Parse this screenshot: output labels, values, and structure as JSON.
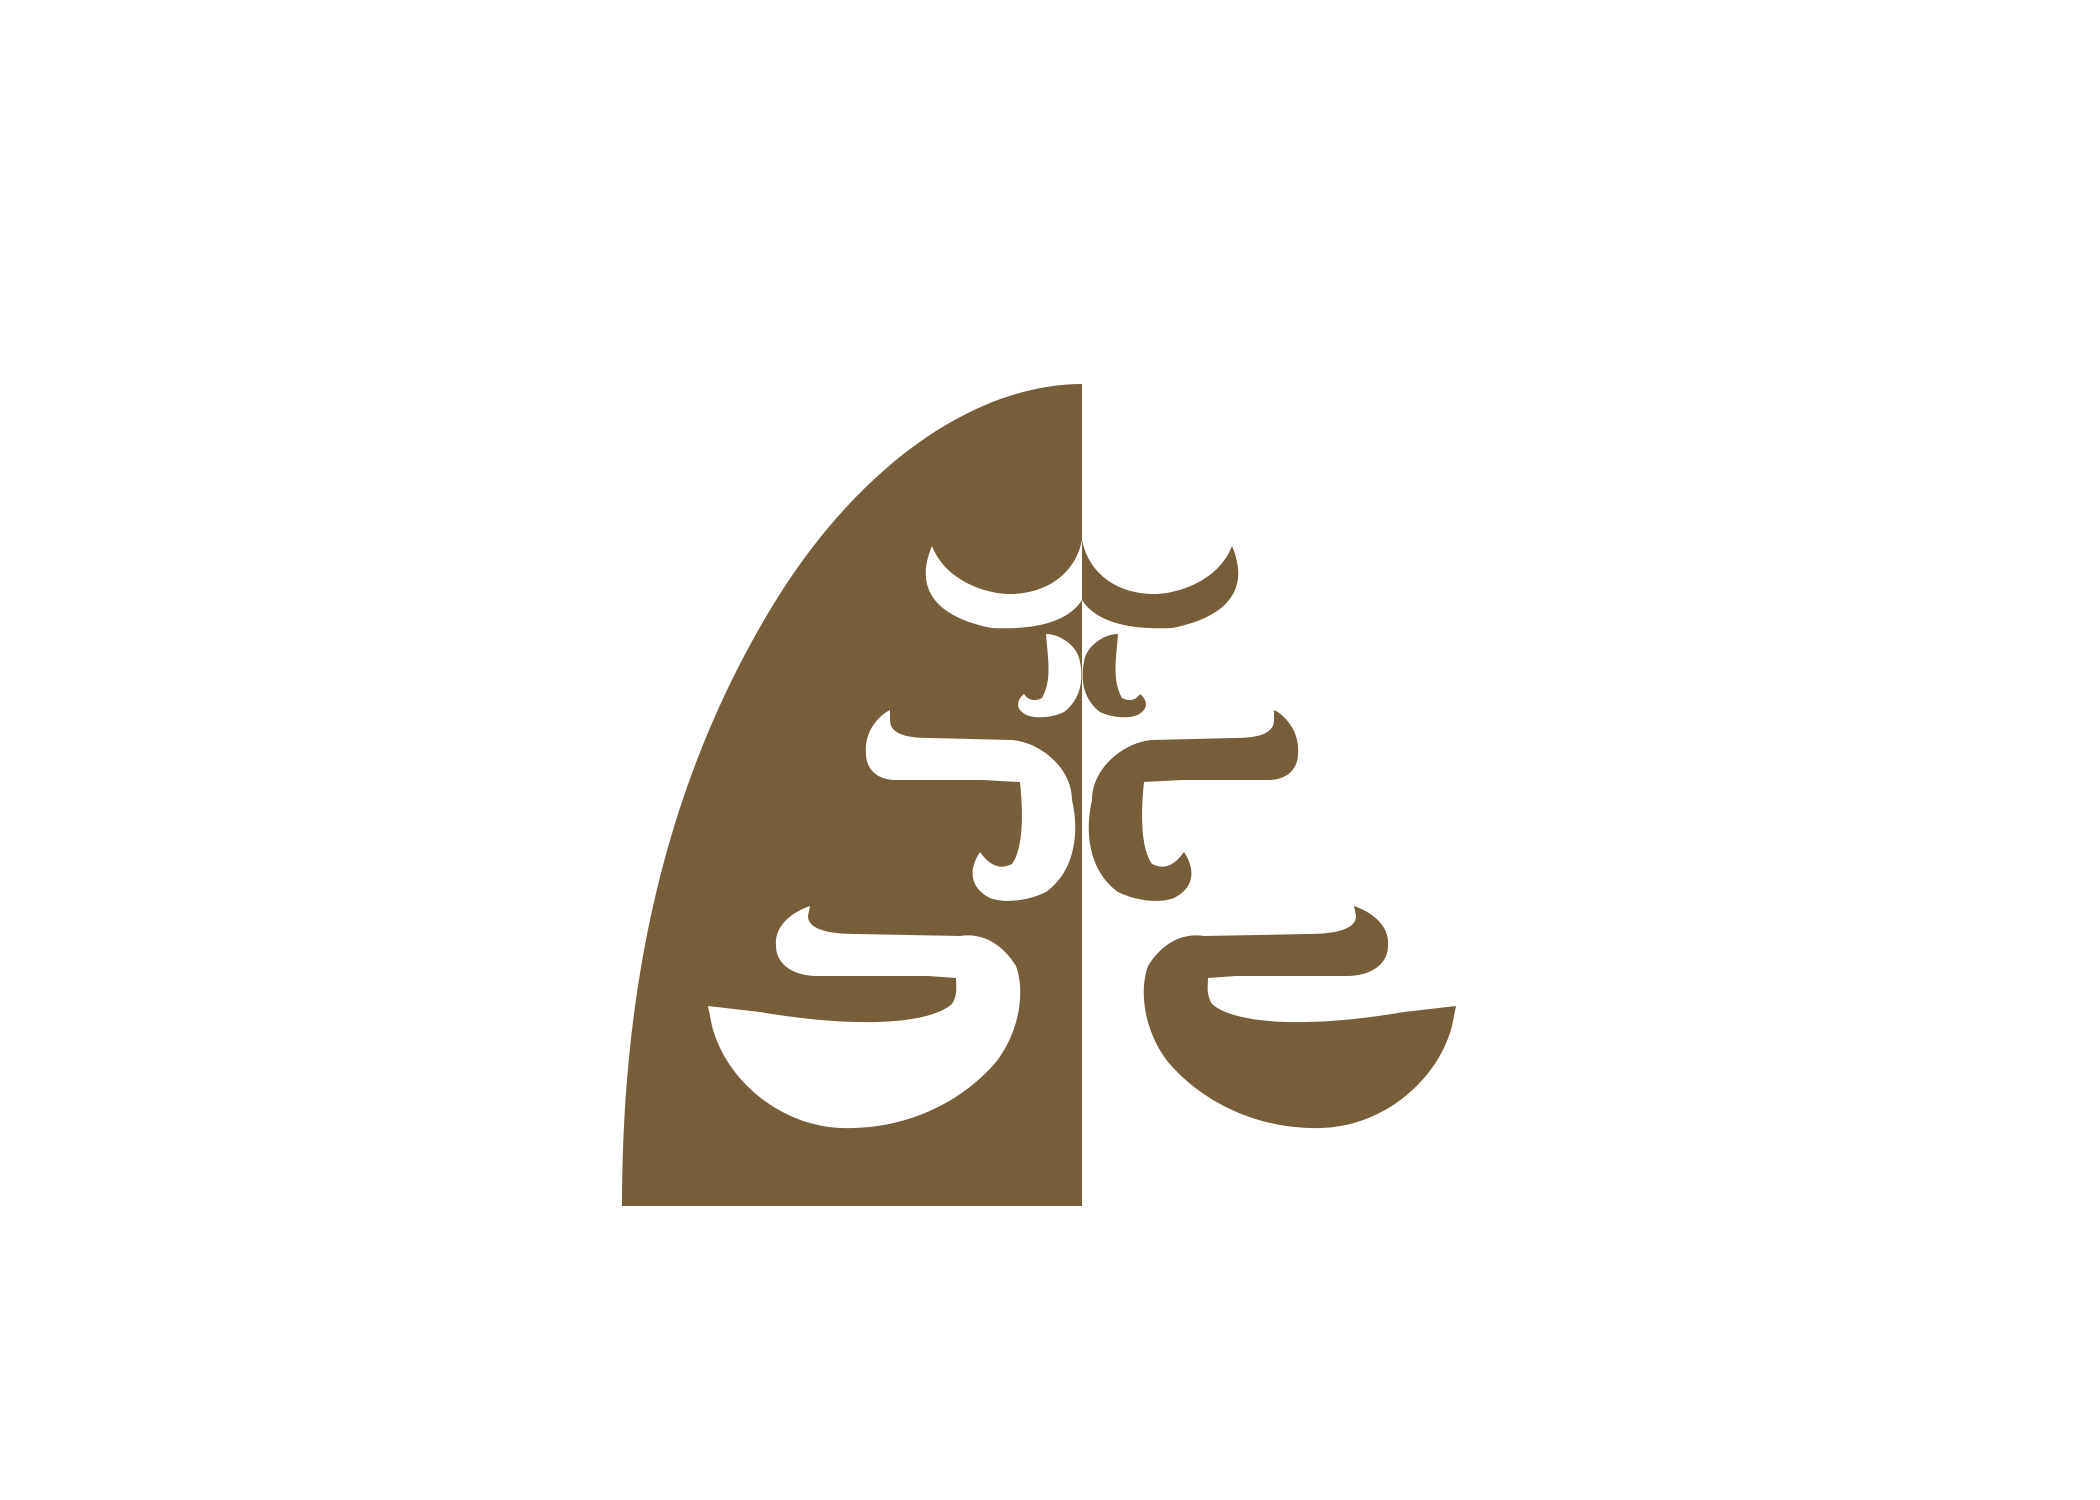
{
  "canvas": {
    "background": "#ffffff"
  },
  "logo": {
    "description_name": "symmetric-mirrored-emblem",
    "primary_color": "#765e3a",
    "background_color": "#ffffff"
  }
}
